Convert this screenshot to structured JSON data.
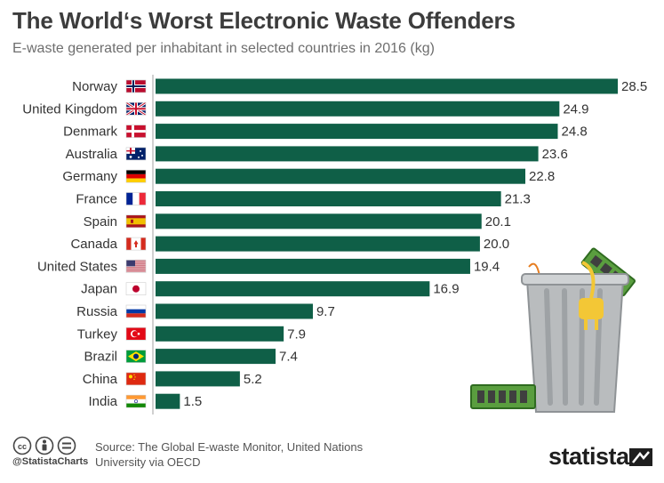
{
  "header": {
    "title": "The World‘s Worst Electronic Waste Offenders",
    "subtitle": "E-waste generated per inhabitant in selected countries in 2016 (kg)"
  },
  "chart_data": {
    "type": "bar",
    "orientation": "horizontal",
    "title": "The World‘s Worst Electronic Waste Offenders",
    "subtitle": "E-waste generated per inhabitant in selected countries in 2016 (kg)",
    "unit": "kg",
    "categories": [
      "Norway",
      "United Kingdom",
      "Denmark",
      "Australia",
      "Germany",
      "France",
      "Spain",
      "Canada",
      "United States",
      "Japan",
      "Russia",
      "Turkey",
      "Brazil",
      "China",
      "India"
    ],
    "values": [
      28.5,
      24.9,
      24.8,
      23.6,
      22.8,
      21.3,
      20.1,
      20.0,
      19.4,
      16.9,
      9.7,
      7.9,
      7.4,
      5.2,
      1.5
    ],
    "value_labels": [
      "28.5",
      "24.9",
      "24.8",
      "23.6",
      "22.8",
      "21.3",
      "20.1",
      "20.0",
      "19.4",
      "16.9",
      "9.7",
      "7.9",
      "7.4",
      "5.2",
      "1.5"
    ],
    "flags": [
      "flag-norway-icon",
      "flag-uk-icon",
      "flag-denmark-icon",
      "flag-australia-icon",
      "flag-germany-icon",
      "flag-france-icon",
      "flag-spain-icon",
      "flag-canada-icon",
      "flag-usa-icon",
      "flag-japan-icon",
      "flag-russia-icon",
      "flag-turkey-icon",
      "flag-brazil-icon",
      "flag-china-icon",
      "flag-india-icon"
    ],
    "bar_color": "#0f5f47",
    "grid": false,
    "xlim": [
      0,
      28.5
    ]
  },
  "footer": {
    "license_icons": [
      "cc-icon",
      "person-icon",
      "equals-icon"
    ],
    "handle": "@StatistaCharts",
    "source_line1": "Source: The Global E-waste Monitor, United Nations",
    "source_line2": "University via OECD",
    "brand": "statista"
  },
  "illustration": "trash-can-icon"
}
